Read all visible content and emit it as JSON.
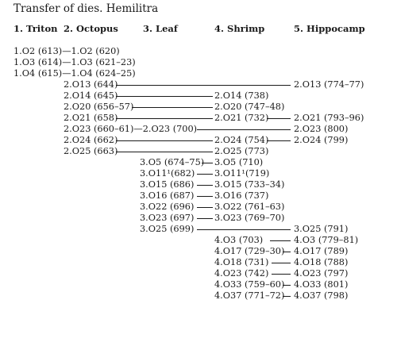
{
  "title": "Transfer of dies. Hemilitra",
  "columns": [
    "1. Triton",
    "2. Octopus",
    "3. Leaf",
    "4. Shrimp",
    "5. Hippocamp"
  ],
  "entries": [
    [
      "1.O2 (613)—1.O2 (620)"
    ],
    [
      "1.O3 (614)—1.O3 (621–23)"
    ],
    [
      "1.O4 (615)—1.O4 (624–25)"
    ],
    [
      "2.O13 (644)",
      "2.O13 (774–77)"
    ],
    [
      "2.O14 (645)",
      "2.O14 (738)"
    ],
    [
      "2.O20 (656–57)",
      "2.O20 (747–48)"
    ],
    [
      "2.O21 (658)",
      "2.O21 (732)",
      "2.O21 (793–96)"
    ],
    [
      "2.O23 (660–61)—2.O23 (700)",
      "2.O23 (800)"
    ],
    [
      "2.O24 (662)",
      "2.O24 (754)",
      "2.O24 (799)"
    ],
    [
      "2.O25 (663)",
      "2.O25 (773)"
    ],
    [
      "3.O5 (674–75)",
      "3.O5 (710)"
    ],
    [
      "3.O11¹(682)",
      "3.O11¹(719)"
    ],
    [
      "3.O15 (686)",
      "3.O15 (733–34)"
    ],
    [
      "3.O16 (687)",
      "3.O16 (737)"
    ],
    [
      "3.O22 (696)",
      "3.O22 (761–63)"
    ],
    [
      "3.O23 (697)",
      "3.O23 (769–70)"
    ],
    [
      "3.O25 (699)",
      "3.O25 (791)"
    ],
    [
      "4.O3 (703)",
      "4.O3 (779–81)"
    ],
    [
      "4.O17 (729–30)",
      "4.O17 (789)"
    ],
    [
      "4.O18 (731)",
      "4.O18 (788)"
    ],
    [
      "4.O23 (742)",
      "4.O23 (797)"
    ],
    [
      "4.O33 (759–60)",
      "4.O33 (801)"
    ],
    [
      "4.O37 (771–72)",
      "4.O37 (798)"
    ]
  ]
}
